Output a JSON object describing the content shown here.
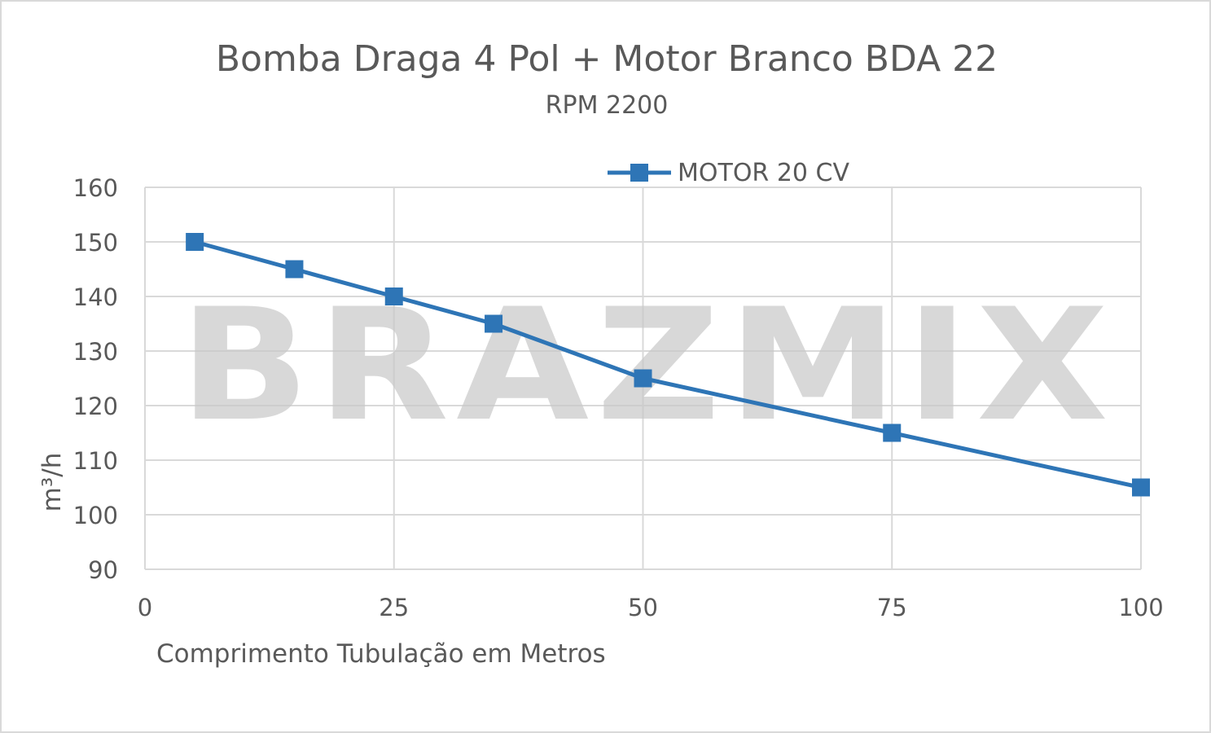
{
  "chart_data": {
    "type": "line",
    "title": "Bomba Draga 4 Pol + Motor Branco BDA 22",
    "subtitle": "RPM 2200",
    "xlabel": "Comprimento Tubulação em Metros",
    "ylabel": "m³/h",
    "xlim": [
      0,
      100
    ],
    "ylim": [
      90,
      160
    ],
    "xticks": [
      0,
      25,
      50,
      75,
      100
    ],
    "yticks": [
      90,
      100,
      110,
      120,
      130,
      140,
      150,
      160
    ],
    "grid": true,
    "legend_position": "top-center",
    "watermark": "BRAZMIX",
    "series": [
      {
        "name": "MOTOR 20 CV",
        "color": "#2e75b6",
        "marker": "square",
        "x": [
          5,
          15,
          25,
          35,
          50,
          75,
          100
        ],
        "y": [
          150,
          145,
          140,
          135,
          125,
          115,
          105
        ]
      }
    ]
  }
}
